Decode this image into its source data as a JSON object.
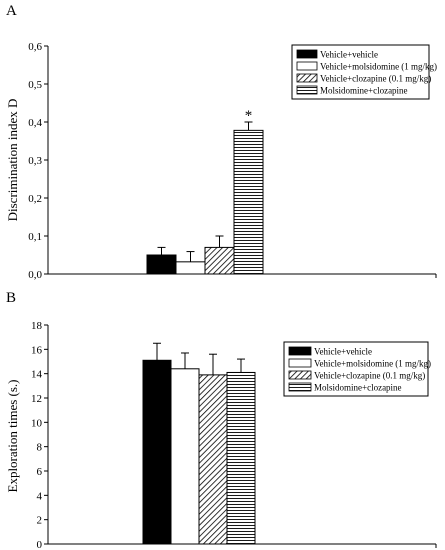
{
  "colors": {
    "axis": "#000000",
    "fill_solid": "#000000",
    "fill_open": "#ffffff"
  },
  "chart_data": [
    {
      "panel": "A",
      "type": "bar",
      "ylabel": "Discrimination index D",
      "ylim": [
        0,
        0.6
      ],
      "yticks": [
        "0,0",
        "0,1",
        "0,2",
        "0,3",
        "0,4",
        "0,5",
        "0,6"
      ],
      "legend_placement": "top-right",
      "series": [
        {
          "name": "Vehicle+vehicle",
          "pattern": "solid",
          "value": 0.05,
          "error": 0.02
        },
        {
          "name": "Vehicle+molsidomine (1 mg/kg)",
          "pattern": "open",
          "value": 0.032,
          "error": 0.027
        },
        {
          "name": "Vehicle+clozapine (0.1 mg/kg)",
          "pattern": "diagonal",
          "value": 0.07,
          "error": 0.03
        },
        {
          "name": "Molsidomine+clozapine",
          "pattern": "horizontal",
          "value": 0.378,
          "error": 0.022
        }
      ],
      "annotations": [
        {
          "series": "Molsidomine+clozapine",
          "text": "*"
        }
      ]
    },
    {
      "panel": "B",
      "type": "bar",
      "ylabel": "Exploration times (s.)",
      "ylim": [
        0,
        18
      ],
      "yticks": [
        "0",
        "2",
        "4",
        "6",
        "8",
        "10",
        "12",
        "14",
        "16",
        "18"
      ],
      "legend_placement": "top-right",
      "series": [
        {
          "name": "Vehicle+vehicle",
          "pattern": "solid",
          "value": 15.1,
          "error": 1.4
        },
        {
          "name": "Vehicle+molsidomine (1 mg/kg)",
          "pattern": "open",
          "value": 14.4,
          "error": 1.3
        },
        {
          "name": "Vehicle+clozapine (0.1 mg/kg)",
          "pattern": "diagonal",
          "value": 13.9,
          "error": 1.7
        },
        {
          "name": "Molsidomine+clozapine",
          "pattern": "horizontal",
          "value": 14.1,
          "error": 1.1
        }
      ]
    }
  ]
}
